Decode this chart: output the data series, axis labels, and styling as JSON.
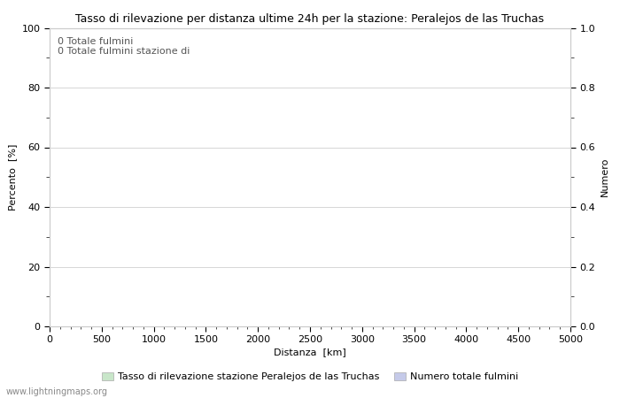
{
  "title": "Tasso di rilevazione per distanza ultime 24h per la stazione: Peralejos de las Truchas",
  "xlabel": "Distanza  [km]",
  "ylabel_left": "Percento  [%]",
  "ylabel_right": "Numero",
  "xlim": [
    0,
    5000
  ],
  "ylim_left": [
    0,
    100
  ],
  "ylim_right": [
    0,
    1.0
  ],
  "xticks": [
    0,
    500,
    1000,
    1500,
    2000,
    2500,
    3000,
    3500,
    4000,
    4500,
    5000
  ],
  "yticks_left": [
    0,
    20,
    40,
    60,
    80,
    100
  ],
  "yticks_right": [
    0.0,
    0.2,
    0.4,
    0.6,
    0.8,
    1.0
  ],
  "minor_yticks_left": [
    10,
    30,
    50,
    70,
    90
  ],
  "annotation_text": "0 Totale fulmini\n0 Totale fulmini stazione di",
  "legend_entries": [
    {
      "label": "Tasso di rilevazione stazione Peralejos de las Truchas",
      "color": "#c8e6c9"
    },
    {
      "label": "Numero totale fulmini",
      "color": "#c5cae9"
    }
  ],
  "watermark": "www.lightningmaps.org",
  "background_color": "#ffffff",
  "plot_bg_color": "#ffffff",
  "grid_color": "#d0d0d0",
  "title_fontsize": 9,
  "label_fontsize": 8,
  "tick_fontsize": 8,
  "annotation_fontsize": 8,
  "legend_fontsize": 8,
  "watermark_fontsize": 7
}
